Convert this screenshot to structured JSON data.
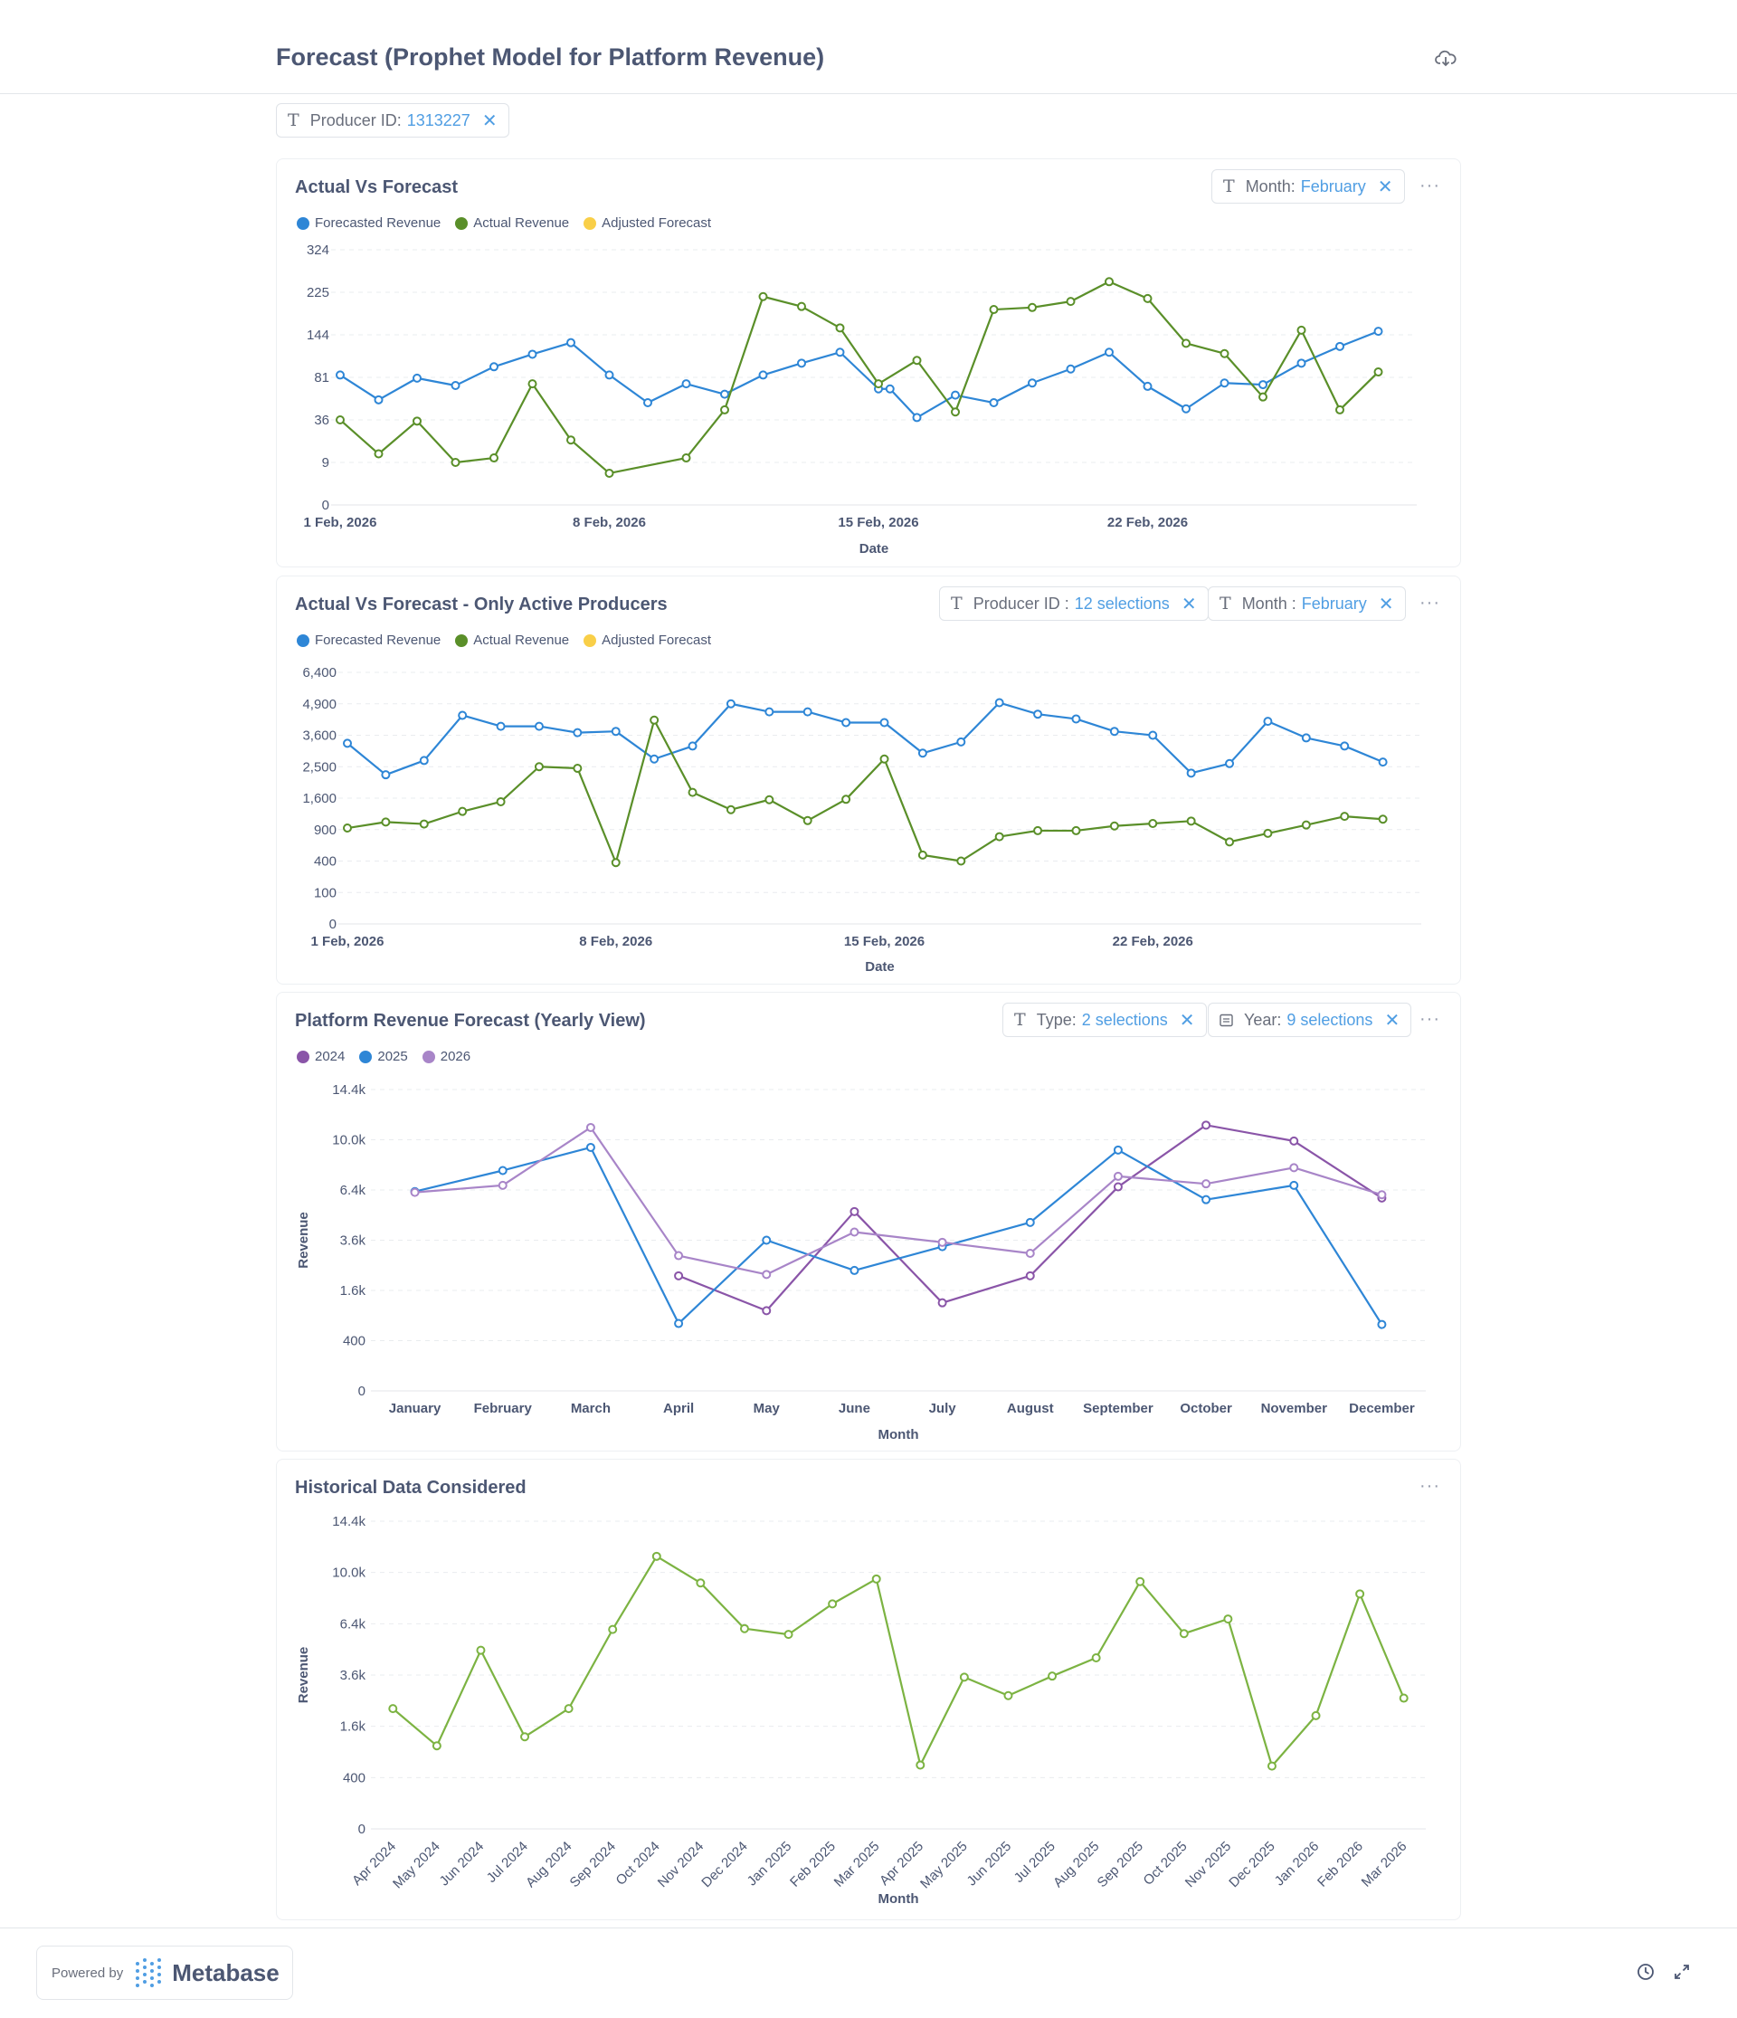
{
  "page": {
    "title": "Forecast (Prophet Model for Platform Revenue)"
  },
  "top_filter": {
    "label": "Producer ID:",
    "value": "1313227"
  },
  "footer": {
    "powered_by": "Powered by",
    "brand": "Metabase"
  },
  "colors": {
    "blue": "#2e86d6",
    "green": "#5a8f29",
    "yellow": "#f9cf48",
    "purple2024": "#8a55a8",
    "purple2026": "#a885c8",
    "lightgreen": "#7cb342"
  },
  "cards": [
    {
      "title": "Actual Vs Forecast",
      "filters": [
        {
          "label": "Month:",
          "value": "February"
        }
      ],
      "chart_data": {
        "type": "line",
        "xlabel": "Date",
        "ylabel": "",
        "y_scale": "sqrt",
        "y_ticks": [
          0,
          9,
          36,
          81,
          144,
          225,
          324
        ],
        "x_ticks": [
          "1 Feb, 2026",
          "8 Feb, 2026",
          "15 Feb, 2026",
          "22 Feb, 2026"
        ],
        "series": [
          {
            "name": "Forecasted Revenue",
            "color": "#2e86d6",
            "x": [
              0,
              1,
              2,
              3,
              4,
              5,
              6,
              7,
              8,
              9,
              10,
              11,
              12,
              13,
              14,
              14.3,
              15,
              16,
              17,
              18,
              19,
              20,
              21,
              22,
              23,
              24,
              25,
              26,
              27
            ],
            "values": [
              84,
              55,
              80,
              71,
              95,
              113,
              131,
              84,
              52,
              73,
              61,
              84,
              100,
              116,
              67,
              67,
              38,
              60,
              52,
              74,
              92,
              116,
              70,
              46,
              74,
              72,
              100,
              125,
              150
            ]
          },
          {
            "name": "Actual Revenue",
            "color": "#5a8f29",
            "x": [
              0,
              1,
              2,
              3,
              4,
              5,
              6,
              7,
              9,
              10,
              11,
              12,
              13,
              14,
              15,
              16,
              17,
              18,
              19,
              20,
              21,
              22,
              23,
              24,
              25,
              26,
              27
            ],
            "values": [
              36,
              13,
              35,
              9,
              11,
              73,
              21,
              5,
              11,
              45,
              216,
              196,
              156,
              73,
              104,
              43,
              190,
              194,
              206,
              248,
              212,
              130,
              114,
              58,
              152,
              45,
              88
            ]
          },
          {
            "name": "Adjusted Forecast",
            "color": "#f9cf48",
            "x": [],
            "values": []
          }
        ]
      }
    },
    {
      "title": "Actual Vs Forecast - Only Active Producers",
      "filters": [
        {
          "label": "Producer ID :",
          "value": "12 selections"
        },
        {
          "label": "Month :",
          "value": "February"
        }
      ],
      "chart_data": {
        "type": "line",
        "xlabel": "Date",
        "ylabel": "",
        "y_scale": "sqrt",
        "y_ticks": [
          0,
          100,
          400,
          900,
          1600,
          2500,
          3600,
          4900,
          6400
        ],
        "y_tick_labels": [
          "0",
          "100",
          "400",
          "900",
          "1,600",
          "2,500",
          "3,600",
          "4,900",
          "6,400"
        ],
        "x_ticks": [
          "1 Feb, 2026",
          "8 Feb, 2026",
          "15 Feb, 2026",
          "22 Feb, 2026"
        ],
        "series": [
          {
            "name": "Forecasted Revenue",
            "color": "#2e86d6",
            "x": [
              0,
              1,
              2,
              3,
              4,
              5,
              6,
              7,
              8,
              9,
              10,
              11,
              12,
              13,
              14,
              15,
              16,
              17,
              18,
              19,
              20,
              21,
              22,
              23,
              24,
              25,
              26,
              27
            ],
            "values": [
              3300,
              2250,
              2700,
              4400,
              3950,
              3950,
              3700,
              3750,
              2750,
              3200,
              4900,
              4550,
              4550,
              4100,
              4100,
              2950,
              3350,
              4950,
              4450,
              4250,
              3750,
              3600,
              2300,
              2600,
              4150,
              3500,
              3200,
              2650
            ]
          },
          {
            "name": "Actual Revenue",
            "color": "#5a8f29",
            "x": [
              0,
              1,
              2,
              3,
              4,
              5,
              6,
              7,
              8,
              9,
              10,
              11,
              12,
              13,
              14,
              15,
              16,
              17,
              18,
              19,
              20,
              21,
              22,
              23,
              24,
              25,
              26,
              27
            ],
            "values": [
              930,
              1050,
              1010,
              1280,
              1510,
              2500,
              2450,
              380,
              4200,
              1750,
              1320,
              1560,
              1080,
              1570,
              2750,
              480,
              400,
              770,
              880,
              880,
              970,
              1020,
              1070,
              680,
              830,
              990,
              1170,
              1110
            ]
          },
          {
            "name": "Adjusted Forecast",
            "color": "#f9cf48",
            "x": [],
            "values": []
          }
        ]
      }
    },
    {
      "title": "Platform Revenue Forecast (Yearly View)",
      "filters": [
        {
          "label": "Type:",
          "value": "2 selections"
        },
        {
          "label": "Year:",
          "value": "9 selections"
        }
      ],
      "chart_data": {
        "type": "line",
        "xlabel": "Month",
        "ylabel": "Revenue",
        "y_scale": "sqrt",
        "y_ticks": [
          0,
          400,
          1600,
          3600,
          6400,
          10000,
          14400
        ],
        "y_tick_labels": [
          "0",
          "400",
          "1.6k",
          "3.6k",
          "6.4k",
          "10.0k",
          "14.4k"
        ],
        "categories": [
          "January",
          "February",
          "March",
          "April",
          "May",
          "June",
          "July",
          "August",
          "September",
          "October",
          "November",
          "December"
        ],
        "series": [
          {
            "name": "2024",
            "color": "#8a55a8",
            "x": [
              3,
              4,
              5,
              6,
              7,
              8,
              9,
              10,
              11
            ],
            "values": [
              2100,
              1020,
              5100,
              1230,
              2100,
              6600,
              11200,
              9900,
              5900
            ]
          },
          {
            "name": "2025",
            "color": "#2e86d6",
            "x": [
              0,
              1,
              2,
              3,
              4,
              5,
              6,
              7,
              8,
              9,
              10,
              11
            ],
            "values": [
              6300,
              7700,
              9400,
              720,
              3600,
              2300,
              3300,
              4500,
              9200,
              5800,
              6700,
              700
            ]
          },
          {
            "name": "2026",
            "color": "#a885c8",
            "x": [
              0,
              1,
              2,
              3,
              4,
              5,
              6,
              7,
              8,
              9,
              10,
              11
            ],
            "values": [
              6250,
              6700,
              11000,
              2900,
              2150,
              4000,
              3500,
              3000,
              7300,
              6800,
              7900,
              6100
            ]
          }
        ]
      }
    },
    {
      "title": "Historical Data Considered",
      "filters": [],
      "chart_data": {
        "type": "line",
        "xlabel": "Month",
        "ylabel": "Revenue",
        "y_scale": "sqrt",
        "y_ticks": [
          0,
          400,
          1600,
          3600,
          6400,
          10000,
          14400
        ],
        "y_tick_labels": [
          "0",
          "400",
          "1.6k",
          "3.6k",
          "6.4k",
          "10.0k",
          "14.4k"
        ],
        "categories": [
          "Apr 2024",
          "May 2024",
          "Jun 2024",
          "Jul 2024",
          "Aug 2024",
          "Sep 2024",
          "Oct 2024",
          "Nov 2024",
          "Dec 2024",
          "Jan 2025",
          "Feb 2025",
          "Mar 2025",
          "Apr 2025",
          "May 2025",
          "Jun 2025",
          "Jul 2025",
          "Aug 2025",
          "Sep 2025",
          "Oct 2025",
          "Nov 2025",
          "Dec 2025",
          "Jan 2026",
          "Feb 2026",
          "Mar 2026"
        ],
        "series": [
          {
            "name": "Revenue",
            "color": "#7cb342",
            "x": [
              0,
              1,
              2,
              3,
              4,
              5,
              6,
              7,
              8,
              9,
              10,
              11,
              12,
              13,
              14,
              15,
              16,
              17,
              18,
              19,
              20,
              21,
              22,
              23
            ],
            "values": [
              2200,
              1050,
              4850,
              1290,
              2200,
              6050,
              11300,
              9200,
              6100,
              5750,
              7700,
              9500,
              620,
              3500,
              2700,
              3550,
              4450,
              9300,
              5800,
              6700,
              600,
              1950,
              8400,
              2600
            ]
          }
        ]
      }
    }
  ]
}
